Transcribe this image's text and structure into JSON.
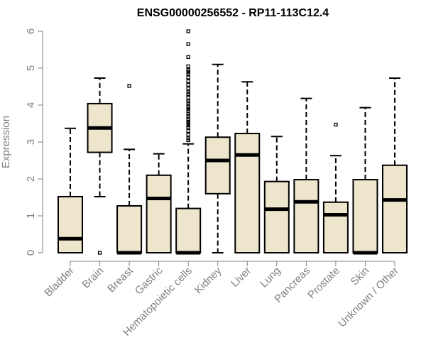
{
  "chart_data": {
    "type": "boxplot",
    "title": "ENSG00000256552 - RP11-113C12.4",
    "xlabel": "",
    "ylabel": "Expression",
    "ylim": [
      0,
      6
    ],
    "yticks": [
      0,
      1,
      2,
      3,
      4,
      5,
      6
    ],
    "box_color": "#ede6cd",
    "line_color": "#000000",
    "axis_color": "#808080",
    "categories": [
      "Bladder",
      "Brain",
      "Breast",
      "Gastric",
      "Hematopoietic cells",
      "Kidney",
      "Liver",
      "Lung",
      "Pancreas",
      "Prostate",
      "Skin",
      "Unknown / Other"
    ],
    "boxes": [
      {
        "whisker_low": 0,
        "q1": 0,
        "median": 0.38,
        "q3": 1.52,
        "whisker_high": 3.37,
        "outliers": []
      },
      {
        "whisker_low": 1.52,
        "q1": 2.72,
        "median": 3.38,
        "q3": 4.04,
        "whisker_high": 4.73,
        "outliers": [
          0
        ]
      },
      {
        "whisker_low": 0,
        "q1": 0,
        "median": 0,
        "q3": 1.27,
        "whisker_high": 2.8,
        "outliers": [
          4.52
        ]
      },
      {
        "whisker_low": 0,
        "q1": 0,
        "median": 1.47,
        "q3": 2.1,
        "whisker_high": 2.68,
        "outliers": []
      },
      {
        "whisker_low": 0,
        "q1": 0,
        "median": 0,
        "q3": 1.2,
        "whisker_high": 2.95,
        "outliers": [
          3.05,
          3.1,
          3.2,
          3.3,
          3.4,
          3.45,
          3.5,
          3.55,
          3.6,
          3.7,
          3.75,
          3.85,
          3.9,
          3.95,
          4.05,
          4.1,
          4.2,
          4.3,
          4.35,
          4.45,
          4.55,
          4.65,
          4.75,
          4.85,
          4.9,
          4.95,
          5.05,
          5.3,
          5.65,
          6.0
        ]
      },
      {
        "whisker_low": 0,
        "q1": 1.6,
        "median": 2.5,
        "q3": 3.13,
        "whisker_high": 5.1,
        "outliers": []
      },
      {
        "whisker_low": 0,
        "q1": 0,
        "median": 2.65,
        "q3": 3.23,
        "whisker_high": 4.63,
        "outliers": []
      },
      {
        "whisker_low": 0,
        "q1": 0,
        "median": 1.18,
        "q3": 1.93,
        "whisker_high": 3.15,
        "outliers": []
      },
      {
        "whisker_low": 0,
        "q1": 0,
        "median": 1.38,
        "q3": 1.98,
        "whisker_high": 4.18,
        "outliers": []
      },
      {
        "whisker_low": 0,
        "q1": 0,
        "median": 1.03,
        "q3": 1.37,
        "whisker_high": 2.63,
        "outliers": [
          3.47
        ]
      },
      {
        "whisker_low": 0,
        "q1": 0,
        "median": 0,
        "q3": 1.98,
        "whisker_high": 3.93,
        "outliers": []
      },
      {
        "whisker_low": 0,
        "q1": 0,
        "median": 1.43,
        "q3": 2.37,
        "whisker_high": 4.73,
        "outliers": []
      }
    ]
  }
}
